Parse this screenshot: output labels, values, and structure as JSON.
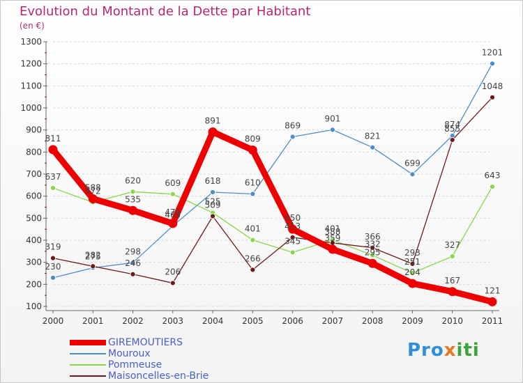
{
  "title": "Evolution du Montant de la Dette par Habitant",
  "subtitle": "(en €)",
  "logo_text": "Proxiti",
  "colors": {
    "title": "#b5286e",
    "grid": "#d8d8d8",
    "axis": "#666666",
    "legend_text": "#4a5fc1"
  },
  "chart_data": {
    "type": "line",
    "x": [
      "2000",
      "2001",
      "2002",
      "2003",
      "2004",
      "2005",
      "2006",
      "2007",
      "2008",
      "2009",
      "2010",
      "2011"
    ],
    "ylim": [
      100,
      1300
    ],
    "yticks": [
      100,
      200,
      300,
      400,
      500,
      600,
      700,
      800,
      900,
      1000,
      1100,
      1200,
      1300
    ],
    "grid": "horizontal-dashed",
    "legend_position": "bottom-left",
    "series": [
      {
        "name": "GIREMOUTIERS",
        "color": "#ee0000",
        "emphasis": true,
        "values": [
          811,
          588,
          535,
          476,
          891,
          809,
          450,
          359,
          295,
          204,
          167,
          121
        ]
      },
      {
        "name": "Mouroux",
        "color": "#4d8dc8",
        "values": [
          230,
          275,
          298,
          465,
          618,
          610,
          869,
          901,
          821,
          699,
          874,
          1201
        ]
      },
      {
        "name": "Pommeuse",
        "color": "#88d64a",
        "values": [
          637,
          572,
          620,
          609,
          525,
          401,
          345,
          401,
          332,
          251,
          327,
          643
        ]
      },
      {
        "name": "Maisoncelles-en-Brie",
        "color": "#6b1a1a",
        "values": [
          319,
          282,
          246,
          206,
          509,
          266,
          413,
          388,
          366,
          293,
          855,
          1048
        ]
      }
    ]
  }
}
